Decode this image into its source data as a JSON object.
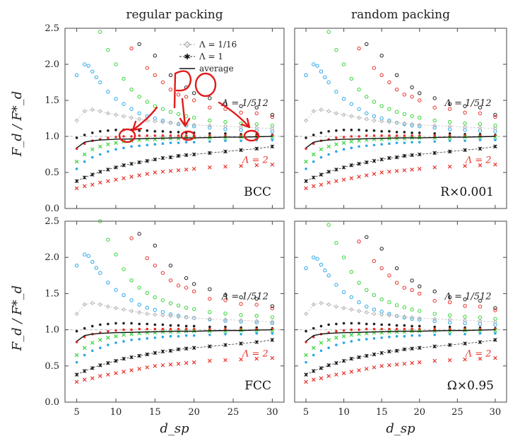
{
  "figure": {
    "column_titles": [
      "regular packing",
      "random packing"
    ],
    "ylabel": "F_d / F*_d",
    "xlabel": "d_sp"
  },
  "legend": {
    "items": [
      {
        "label": "Λ = 1/16",
        "marker": "diamond-dashed"
      },
      {
        "label": "Λ = 1",
        "marker": "star-dashed"
      },
      {
        "label": "average",
        "marker": "solid-line"
      }
    ]
  },
  "colors": {
    "lambda_1_512": "#222222",
    "red_series": "#e8322b",
    "green_series": "#35d435",
    "blue_series": "#2aa6e8",
    "lambda_1_16": "#b5b5b5",
    "average": "#111111",
    "annotation": "#e11b1b"
  },
  "annotation": {
    "text": "Po",
    "circled_points_x": [
      11,
      20,
      29
    ]
  },
  "chart_data": [
    {
      "type": "scatter",
      "panel_label": "BCC",
      "xlim": [
        3.5,
        31.5
      ],
      "ylim": [
        0,
        2.5
      ],
      "xticks": [
        5,
        10,
        15,
        20,
        25,
        30
      ],
      "yticks": [
        "0.0",
        "0.5",
        "1.0",
        "1.5",
        "2.0",
        "2.5"
      ],
      "reference_line": 1.0,
      "lambda_labels": [
        {
          "text": "Λ = 1/512",
          "x": 29.5,
          "y": 1.42,
          "color": "#222222"
        },
        {
          "text": "Λ = 2",
          "x": 29.5,
          "y": 0.63,
          "color": "#e8322b"
        }
      ]
    },
    {
      "type": "scatter",
      "panel_label": "R×0.001",
      "xlim": [
        3.5,
        31.5
      ],
      "ylim": [
        0,
        2.5
      ],
      "xticks": [
        5,
        10,
        15,
        20,
        25,
        30
      ],
      "yticks": [
        "0.0",
        "0.5",
        "1.0",
        "1.5",
        "2.0",
        "2.5"
      ],
      "reference_line": 1.0,
      "lambda_labels": [
        {
          "text": "Λ = 1/512",
          "x": 29.5,
          "y": 1.42,
          "color": "#222222"
        },
        {
          "text": "Λ = 2",
          "x": 29.5,
          "y": 0.63,
          "color": "#e8322b"
        }
      ]
    },
    {
      "type": "scatter",
      "panel_label": "FCC",
      "xlim": [
        3.5,
        31.5
      ],
      "ylim": [
        0,
        2.5
      ],
      "xticks": [
        5,
        10,
        15,
        20,
        25,
        30
      ],
      "yticks": [
        "0.0",
        "0.5",
        "1.0",
        "1.5",
        "2.0",
        "2.5"
      ],
      "reference_line": 1.0,
      "lambda_labels": [
        {
          "text": "Λ = 1/512",
          "x": 29.5,
          "y": 1.42,
          "color": "#222222"
        },
        {
          "text": "Λ = 2",
          "x": 29.5,
          "y": 0.63,
          "color": "#e8322b"
        }
      ]
    },
    {
      "type": "scatter",
      "panel_label": "Ω×0.95",
      "xlim": [
        3.5,
        31.5
      ],
      "ylim": [
        0,
        2.5
      ],
      "xticks": [
        5,
        10,
        15,
        20,
        25,
        30
      ],
      "yticks": [
        "0.0",
        "0.5",
        "1.0",
        "1.5",
        "2.0",
        "2.5"
      ],
      "reference_line": 1.0,
      "lambda_labels": [
        {
          "text": "Λ = 1/512",
          "x": 29.5,
          "y": 1.42,
          "color": "#222222"
        },
        {
          "text": "Λ = 2",
          "x": 29.5,
          "y": 0.63,
          "color": "#e8322b"
        }
      ]
    }
  ],
  "series_points": {
    "black_circles_upper": [
      [
        13,
        2.28
      ],
      [
        15,
        2.12
      ],
      [
        17,
        1.85
      ],
      [
        19,
        1.68
      ],
      [
        20,
        1.6
      ],
      [
        22,
        1.53
      ],
      [
        24,
        1.45
      ],
      [
        26,
        1.42
      ],
      [
        28,
        1.4
      ],
      [
        30,
        1.3
      ]
    ],
    "red_circles_upper": [
      [
        12,
        2.22
      ],
      [
        14,
        1.95
      ],
      [
        15,
        1.85
      ],
      [
        16,
        1.75
      ],
      [
        17,
        1.65
      ],
      [
        18,
        1.58
      ],
      [
        19,
        1.55
      ],
      [
        20,
        1.5
      ],
      [
        22,
        1.4
      ],
      [
        24,
        1.38
      ],
      [
        26,
        1.33
      ],
      [
        28,
        1.32
      ],
      [
        30,
        1.27
      ]
    ],
    "green_circles_upper": [
      [
        8,
        2.45
      ],
      [
        9,
        2.2
      ],
      [
        10,
        2.0
      ],
      [
        11,
        1.8
      ],
      [
        12,
        1.65
      ],
      [
        13,
        1.55
      ],
      [
        14,
        1.48
      ],
      [
        15,
        1.42
      ],
      [
        16,
        1.38
      ],
      [
        17,
        1.34
      ],
      [
        18,
        1.31
      ],
      [
        19,
        1.28
      ],
      [
        20,
        1.26
      ],
      [
        22,
        1.22
      ],
      [
        24,
        1.2
      ],
      [
        26,
        1.18
      ],
      [
        28,
        1.17
      ],
      [
        30,
        1.15
      ]
    ],
    "blue_circles_upper": [
      [
        5,
        1.85
      ],
      [
        6,
        2.0
      ],
      [
        6.5,
        1.98
      ],
      [
        7,
        1.9
      ],
      [
        7.5,
        1.82
      ],
      [
        8,
        1.75
      ],
      [
        9,
        1.62
      ],
      [
        10,
        1.52
      ],
      [
        11,
        1.45
      ],
      [
        12,
        1.38
      ],
      [
        13,
        1.32
      ],
      [
        14,
        1.28
      ],
      [
        15,
        1.25
      ],
      [
        16,
        1.22
      ],
      [
        17,
        1.19
      ],
      [
        18,
        1.17
      ],
      [
        19,
        1.15
      ],
      [
        20,
        1.14
      ],
      [
        22,
        1.12
      ],
      [
        24,
        1.1
      ],
      [
        26,
        1.09
      ],
      [
        28,
        1.08
      ],
      [
        30,
        1.07
      ]
    ],
    "lambda_1_16": [
      [
        5,
        1.22
      ],
      [
        6,
        1.35
      ],
      [
        7,
        1.37
      ],
      [
        8,
        1.35
      ],
      [
        9,
        1.32
      ],
      [
        10,
        1.3
      ],
      [
        11,
        1.28
      ],
      [
        12,
        1.26
      ],
      [
        13,
        1.24
      ],
      [
        14,
        1.22
      ],
      [
        15,
        1.21
      ],
      [
        16,
        1.2
      ],
      [
        17,
        1.19
      ],
      [
        18,
        1.18
      ],
      [
        19,
        1.17
      ],
      [
        20,
        1.16
      ],
      [
        22,
        1.15
      ],
      [
        24,
        1.14
      ],
      [
        26,
        1.13
      ],
      [
        28,
        1.12
      ],
      [
        30,
        1.11
      ]
    ],
    "black_dots_near_one": [
      [
        5,
        0.98
      ],
      [
        6,
        1.02
      ],
      [
        7,
        1.05
      ],
      [
        8,
        1.07
      ],
      [
        9,
        1.08
      ],
      [
        10,
        1.09
      ],
      [
        11,
        1.09
      ],
      [
        12,
        1.09
      ],
      [
        13,
        1.08
      ],
      [
        14,
        1.08
      ],
      [
        15,
        1.07
      ],
      [
        16,
        1.07
      ],
      [
        17,
        1.06
      ],
      [
        18,
        1.06
      ],
      [
        19,
        1.05
      ],
      [
        20,
        1.05
      ],
      [
        22,
        1.04
      ],
      [
        24,
        1.04
      ],
      [
        26,
        1.03
      ],
      [
        28,
        1.03
      ],
      [
        30,
        1.02
      ]
    ],
    "red_dots_near_one": [
      [
        5,
        0.83
      ],
      [
        6,
        0.9
      ],
      [
        7,
        0.94
      ],
      [
        8,
        0.96
      ],
      [
        9,
        0.98
      ],
      [
        10,
        0.99
      ],
      [
        11,
        1.0
      ],
      [
        12,
        1.0
      ],
      [
        13,
        1.01
      ],
      [
        14,
        1.01
      ],
      [
        15,
        1.01
      ],
      [
        16,
        1.01
      ],
      [
        17,
        1.01
      ],
      [
        18,
        1.01
      ],
      [
        19,
        1.01
      ],
      [
        20,
        1.01
      ],
      [
        22,
        1.01
      ],
      [
        24,
        1.01
      ],
      [
        26,
        1.01
      ],
      [
        28,
        1.01
      ],
      [
        30,
        1.01
      ]
    ],
    "green_crosses": [
      [
        5,
        0.65
      ],
      [
        6,
        0.75
      ],
      [
        7,
        0.82
      ],
      [
        8,
        0.86
      ],
      [
        9,
        0.89
      ],
      [
        10,
        0.91
      ],
      [
        11,
        0.93
      ],
      [
        12,
        0.94
      ],
      [
        13,
        0.95
      ],
      [
        14,
        0.96
      ],
      [
        15,
        0.96
      ],
      [
        16,
        0.97
      ],
      [
        17,
        0.97
      ],
      [
        18,
        0.97
      ],
      [
        19,
        0.98
      ],
      [
        20,
        0.98
      ],
      [
        22,
        0.98
      ],
      [
        24,
        0.98
      ],
      [
        26,
        0.99
      ],
      [
        28,
        0.99
      ],
      [
        30,
        0.99
      ]
    ],
    "blue_dots_low": [
      [
        5,
        0.55
      ],
      [
        6,
        0.65
      ],
      [
        7,
        0.71
      ],
      [
        8,
        0.75
      ],
      [
        9,
        0.79
      ],
      [
        10,
        0.82
      ],
      [
        11,
        0.84
      ],
      [
        12,
        0.86
      ],
      [
        13,
        0.87
      ],
      [
        14,
        0.88
      ],
      [
        15,
        0.89
      ],
      [
        16,
        0.9
      ],
      [
        17,
        0.91
      ],
      [
        18,
        0.91
      ],
      [
        19,
        0.92
      ],
      [
        20,
        0.92
      ],
      [
        22,
        0.93
      ],
      [
        24,
        0.94
      ],
      [
        26,
        0.94
      ],
      [
        28,
        0.95
      ],
      [
        30,
        0.95
      ]
    ],
    "lambda_1": [
      [
        5,
        0.38
      ],
      [
        6,
        0.43
      ],
      [
        7,
        0.47
      ],
      [
        8,
        0.51
      ],
      [
        9,
        0.54
      ],
      [
        10,
        0.57
      ],
      [
        11,
        0.6
      ],
      [
        12,
        0.62
      ],
      [
        13,
        0.64
      ],
      [
        14,
        0.66
      ],
      [
        15,
        0.68
      ],
      [
        16,
        0.7
      ],
      [
        17,
        0.71
      ],
      [
        18,
        0.73
      ],
      [
        19,
        0.74
      ],
      [
        20,
        0.75
      ],
      [
        22,
        0.77
      ],
      [
        24,
        0.79
      ],
      [
        26,
        0.81
      ],
      [
        28,
        0.83
      ],
      [
        30,
        0.86
      ]
    ],
    "lambda_2": [
      [
        5,
        0.28
      ],
      [
        6,
        0.31
      ],
      [
        7,
        0.33
      ],
      [
        8,
        0.36
      ],
      [
        9,
        0.38
      ],
      [
        10,
        0.4
      ],
      [
        11,
        0.42
      ],
      [
        12,
        0.44
      ],
      [
        13,
        0.46
      ],
      [
        14,
        0.48
      ],
      [
        15,
        0.5
      ],
      [
        16,
        0.51
      ],
      [
        17,
        0.52
      ],
      [
        18,
        0.53
      ],
      [
        19,
        0.54
      ],
      [
        20,
        0.55
      ],
      [
        22,
        0.57
      ],
      [
        24,
        0.58
      ],
      [
        26,
        0.59
      ],
      [
        28,
        0.6
      ],
      [
        30,
        0.61
      ]
    ],
    "average": [
      [
        5,
        0.84
      ],
      [
        6,
        0.92
      ],
      [
        7,
        0.94
      ],
      [
        8,
        0.95
      ],
      [
        9,
        0.955
      ],
      [
        10,
        0.96
      ],
      [
        12,
        0.965
      ],
      [
        14,
        0.97
      ],
      [
        16,
        0.975
      ],
      [
        18,
        0.98
      ],
      [
        20,
        0.98
      ],
      [
        22,
        0.985
      ],
      [
        24,
        0.99
      ],
      [
        26,
        0.99
      ],
      [
        28,
        0.995
      ],
      [
        30,
        1.0
      ]
    ]
  }
}
